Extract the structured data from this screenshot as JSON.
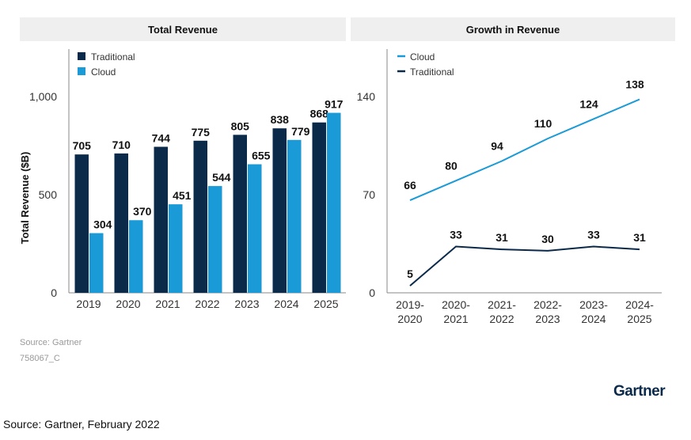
{
  "chart_data": [
    {
      "type": "bar",
      "title": "Total Revenue",
      "ylabel": "Total Revenue ($B)",
      "xlabel": "",
      "categories": [
        "2019",
        "2020",
        "2021",
        "2022",
        "2023",
        "2024",
        "2025"
      ],
      "series": [
        {
          "name": "Traditional",
          "color": "#0b2a4a",
          "values": [
            705,
            710,
            744,
            775,
            805,
            838,
            868
          ]
        },
        {
          "name": "Cloud",
          "color": "#1a9ad6",
          "values": [
            304,
            370,
            451,
            544,
            655,
            779,
            917
          ]
        }
      ],
      "ylim": [
        0,
        1250
      ],
      "yticks": [
        0,
        500,
        1000
      ],
      "ytick_labels": [
        "0",
        "500",
        "1,000"
      ],
      "legend": "top-left",
      "grid": false,
      "source": "Source: Gartner",
      "code": "758067_C"
    },
    {
      "type": "line",
      "title": "Growth in Revenue",
      "ylabel": "",
      "xlabel": "",
      "categories": [
        "2019-2020",
        "2020-2021",
        "2021-2022",
        "2022-2023",
        "2023-2024",
        "2024-2025"
      ],
      "series": [
        {
          "name": "Cloud",
          "color": "#1a9ad6",
          "values": [
            66,
            80,
            94,
            110,
            124,
            138
          ]
        },
        {
          "name": "Traditional",
          "color": "#0b2a4a",
          "values": [
            5,
            33,
            31,
            30,
            33,
            31
          ]
        }
      ],
      "ylim": [
        0,
        175
      ],
      "yticks": [
        0,
        70,
        140
      ],
      "ytick_labels": [
        "0",
        "70",
        "140"
      ],
      "legend": "top-left",
      "grid": false
    }
  ],
  "logo": "Gartner",
  "footer": "Source: Gartner, February 2022"
}
